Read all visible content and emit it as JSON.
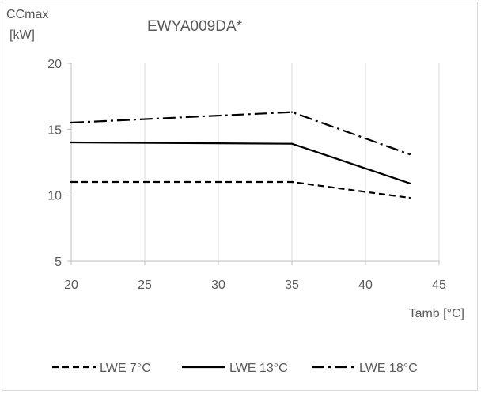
{
  "chart_data": {
    "type": "line",
    "title": "EWYA009DA*",
    "ylabel_line1": "CCmax",
    "ylabel_line2": "[kW]",
    "xlabel": "Tamb [°C]",
    "xlim": [
      20,
      45
    ],
    "ylim": [
      5,
      20
    ],
    "xticks": [
      20,
      25,
      30,
      35,
      40,
      45
    ],
    "yticks": [
      5,
      10,
      15,
      20
    ],
    "grid": "vertical",
    "legend_position": "bottom",
    "series": [
      {
        "name": "LWE 7°C",
        "style": "dashed",
        "x": [
          20,
          35,
          43
        ],
        "y": [
          11.0,
          11.0,
          9.8
        ]
      },
      {
        "name": "LWE 13°C",
        "style": "solid",
        "x": [
          20,
          35,
          43
        ],
        "y": [
          14.0,
          13.9,
          10.9
        ]
      },
      {
        "name": "LWE 18°C",
        "style": "dash-dot",
        "x": [
          20,
          35,
          43
        ],
        "y": [
          15.5,
          16.3,
          13.1
        ]
      }
    ],
    "colors": {
      "line": "#000000",
      "text": "#595959",
      "grid": "#d9d9d9",
      "axis": "#bfbfbf"
    }
  }
}
